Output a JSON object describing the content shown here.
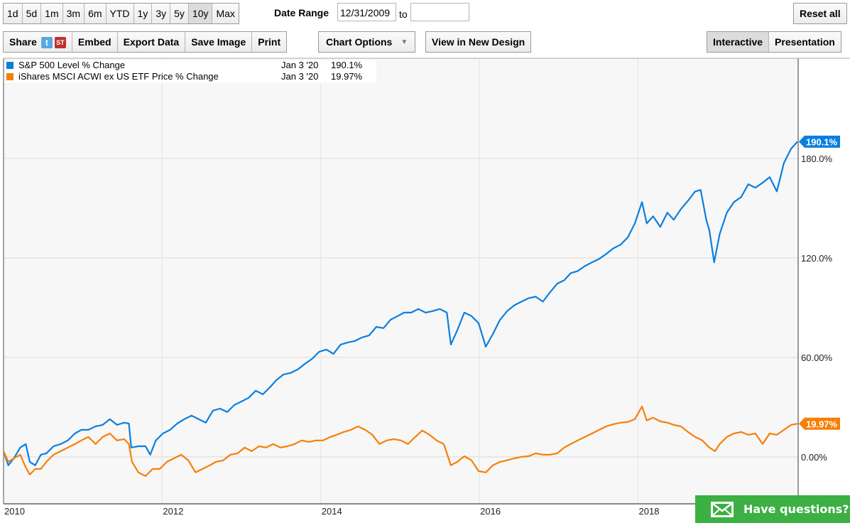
{
  "toolbar": {
    "ranges": [
      "1d",
      "5d",
      "1m",
      "3m",
      "6m",
      "YTD",
      "1y",
      "3y",
      "5y",
      "10y",
      "Max"
    ],
    "active_range": "10y",
    "date_range_label": "Date Range",
    "date_from": "12/31/2009",
    "to_label": "to",
    "date_to": "",
    "reset_label": "Reset all",
    "share_label": "Share",
    "twitter_glyph": "t",
    "stocktwits_glyph": "ST",
    "embed_label": "Embed",
    "export_label": "Export Data",
    "save_image_label": "Save Image",
    "print_label": "Print",
    "chart_options_label": "Chart Options",
    "view_new_design_label": "View in New Design",
    "interactive_label": "Interactive",
    "presentation_label": "Presentation"
  },
  "legend": [
    {
      "name": "S&P 500 Level % Change",
      "date": "Jan 3 '20",
      "value": "190.1%",
      "color": "#0a7fe0"
    },
    {
      "name": "iShares MSCI ACWI ex US ETF Price % Change",
      "date": "Jan 3 '20",
      "value": "19.97%",
      "color": "#f77f06"
    }
  ],
  "help_widget": {
    "label": "Have questions?",
    "icon": "envelope-icon"
  },
  "chart_data": {
    "type": "line",
    "title": "",
    "xlabel": "",
    "ylabel": "",
    "xlim": [
      2010.0,
      2020.01
    ],
    "ylim": [
      -27.9,
      240.4
    ],
    "x_ticks": [
      2010,
      2012,
      2014,
      2016,
      2018
    ],
    "x_tick_labels": [
      "2010",
      "2012",
      "2014",
      "2016",
      "2018"
    ],
    "y_ticks": [
      0,
      60,
      120,
      180
    ],
    "y_tick_labels": [
      "0.00%",
      "60.00%",
      "120.0%",
      "180.0%"
    ],
    "grid": true,
    "legend_position": "top-left",
    "end_labels": [
      "190.1%",
      "19.97%"
    ],
    "series": [
      {
        "name": "S&P 500 Level % Change",
        "color": "#0a7fe0",
        "points": [
          [
            2010.0,
            3.4
          ],
          [
            2010.06,
            -5.1
          ],
          [
            2010.13,
            -0.9
          ],
          [
            2010.21,
            5.6
          ],
          [
            2010.28,
            7.7
          ],
          [
            2010.33,
            -3.0
          ],
          [
            2010.4,
            -5.1
          ],
          [
            2010.47,
            1.3
          ],
          [
            2010.54,
            2.1
          ],
          [
            2010.63,
            6.4
          ],
          [
            2010.72,
            7.7
          ],
          [
            2010.81,
            9.9
          ],
          [
            2010.9,
            14.1
          ],
          [
            2010.98,
            16.3
          ],
          [
            2011.07,
            16.3
          ],
          [
            2011.16,
            18.4
          ],
          [
            2011.25,
            19.3
          ],
          [
            2011.34,
            22.7
          ],
          [
            2011.43,
            19.3
          ],
          [
            2011.52,
            20.6
          ],
          [
            2011.58,
            20.1
          ],
          [
            2011.61,
            5.6
          ],
          [
            2011.7,
            6.4
          ],
          [
            2011.79,
            6.4
          ],
          [
            2011.85,
            1.3
          ],
          [
            2011.92,
            9.9
          ],
          [
            2012.01,
            14.1
          ],
          [
            2012.1,
            16.3
          ],
          [
            2012.19,
            20.1
          ],
          [
            2012.28,
            22.7
          ],
          [
            2012.37,
            24.9
          ],
          [
            2012.46,
            22.7
          ],
          [
            2012.55,
            20.6
          ],
          [
            2012.64,
            27.9
          ],
          [
            2012.73,
            29.1
          ],
          [
            2012.82,
            27.0
          ],
          [
            2012.91,
            31.3
          ],
          [
            2013.0,
            33.4
          ],
          [
            2013.09,
            35.6
          ],
          [
            2013.18,
            39.9
          ],
          [
            2013.27,
            37.7
          ],
          [
            2013.36,
            42.0
          ],
          [
            2013.44,
            46.3
          ],
          [
            2013.53,
            49.7
          ],
          [
            2013.62,
            50.6
          ],
          [
            2013.71,
            52.7
          ],
          [
            2013.8,
            56.1
          ],
          [
            2013.89,
            59.1
          ],
          [
            2013.98,
            63.4
          ],
          [
            2014.07,
            64.7
          ],
          [
            2014.16,
            62.1
          ],
          [
            2014.25,
            67.7
          ],
          [
            2014.34,
            69.0
          ],
          [
            2014.43,
            69.9
          ],
          [
            2014.52,
            72.0
          ],
          [
            2014.61,
            73.3
          ],
          [
            2014.7,
            78.4
          ],
          [
            2014.79,
            77.6
          ],
          [
            2014.88,
            82.7
          ],
          [
            2014.97,
            84.9
          ],
          [
            2015.05,
            87.0
          ],
          [
            2015.14,
            87.0
          ],
          [
            2015.23,
            89.2
          ],
          [
            2015.32,
            87.0
          ],
          [
            2015.41,
            87.9
          ],
          [
            2015.5,
            89.2
          ],
          [
            2015.59,
            87.0
          ],
          [
            2015.64,
            67.7
          ],
          [
            2015.72,
            76.3
          ],
          [
            2015.81,
            87.0
          ],
          [
            2015.9,
            84.9
          ],
          [
            2015.99,
            80.6
          ],
          [
            2016.08,
            66.4
          ],
          [
            2016.17,
            74.1
          ],
          [
            2016.26,
            82.7
          ],
          [
            2016.35,
            87.9
          ],
          [
            2016.44,
            91.4
          ],
          [
            2016.53,
            93.6
          ],
          [
            2016.62,
            95.7
          ],
          [
            2016.71,
            96.6
          ],
          [
            2016.8,
            93.6
          ],
          [
            2016.89,
            99.2
          ],
          [
            2016.98,
            104.4
          ],
          [
            2017.07,
            106.5
          ],
          [
            2017.15,
            110.8
          ],
          [
            2017.24,
            112.1
          ],
          [
            2017.33,
            115.1
          ],
          [
            2017.42,
            117.3
          ],
          [
            2017.51,
            119.4
          ],
          [
            2017.6,
            122.4
          ],
          [
            2017.69,
            125.8
          ],
          [
            2017.78,
            128.0
          ],
          [
            2017.87,
            132.3
          ],
          [
            2017.96,
            140.8
          ],
          [
            2018.05,
            153.7
          ],
          [
            2018.11,
            140.8
          ],
          [
            2018.19,
            145.1
          ],
          [
            2018.28,
            138.7
          ],
          [
            2018.37,
            147.3
          ],
          [
            2018.45,
            143.0
          ],
          [
            2018.54,
            149.4
          ],
          [
            2018.63,
            154.5
          ],
          [
            2018.72,
            160.1
          ],
          [
            2018.79,
            161.0
          ],
          [
            2018.86,
            143.0
          ],
          [
            2018.9,
            136.5
          ],
          [
            2018.96,
            117.3
          ],
          [
            2019.03,
            134.4
          ],
          [
            2019.12,
            147.3
          ],
          [
            2019.21,
            153.7
          ],
          [
            2019.3,
            156.7
          ],
          [
            2019.39,
            164.4
          ],
          [
            2019.48,
            162.3
          ],
          [
            2019.57,
            165.3
          ],
          [
            2019.66,
            168.7
          ],
          [
            2019.75,
            160.1
          ],
          [
            2019.84,
            177.3
          ],
          [
            2019.93,
            185.9
          ],
          [
            2020.01,
            190.1
          ]
        ]
      },
      {
        "name": "iShares MSCI ACWI ex US ETF Price % Change",
        "color": "#f77f06",
        "points": [
          [
            2010.0,
            3.4
          ],
          [
            2010.06,
            -3.0
          ],
          [
            2010.13,
            -0.9
          ],
          [
            2010.21,
            1.3
          ],
          [
            2010.28,
            -6.4
          ],
          [
            2010.33,
            -10.7
          ],
          [
            2010.4,
            -7.3
          ],
          [
            2010.47,
            -7.3
          ],
          [
            2010.54,
            -3.0
          ],
          [
            2010.63,
            1.3
          ],
          [
            2010.72,
            3.4
          ],
          [
            2010.81,
            5.6
          ],
          [
            2010.9,
            7.7
          ],
          [
            2010.98,
            9.9
          ],
          [
            2011.07,
            12.0
          ],
          [
            2011.16,
            7.7
          ],
          [
            2011.25,
            12.0
          ],
          [
            2011.34,
            14.1
          ],
          [
            2011.43,
            9.9
          ],
          [
            2011.52,
            10.7
          ],
          [
            2011.58,
            7.7
          ],
          [
            2011.62,
            -3.0
          ],
          [
            2011.7,
            -9.4
          ],
          [
            2011.79,
            -11.6
          ],
          [
            2011.88,
            -7.3
          ],
          [
            2011.97,
            -7.3
          ],
          [
            2012.06,
            -3.0
          ],
          [
            2012.15,
            -0.9
          ],
          [
            2012.24,
            1.3
          ],
          [
            2012.33,
            -2.1
          ],
          [
            2012.42,
            -9.4
          ],
          [
            2012.51,
            -7.3
          ],
          [
            2012.6,
            -5.1
          ],
          [
            2012.68,
            -3.0
          ],
          [
            2012.77,
            -2.1
          ],
          [
            2012.86,
            1.3
          ],
          [
            2012.95,
            2.1
          ],
          [
            2013.04,
            5.6
          ],
          [
            2013.13,
            3.4
          ],
          [
            2013.22,
            6.4
          ],
          [
            2013.31,
            5.6
          ],
          [
            2013.4,
            7.7
          ],
          [
            2013.49,
            5.6
          ],
          [
            2013.58,
            6.4
          ],
          [
            2013.67,
            7.7
          ],
          [
            2013.76,
            9.9
          ],
          [
            2013.85,
            9.0
          ],
          [
            2013.94,
            9.9
          ],
          [
            2014.03,
            9.9
          ],
          [
            2014.12,
            12.0
          ],
          [
            2014.2,
            13.3
          ],
          [
            2014.29,
            15.0
          ],
          [
            2014.38,
            16.3
          ],
          [
            2014.47,
            18.4
          ],
          [
            2014.56,
            16.3
          ],
          [
            2014.65,
            13.3
          ],
          [
            2014.74,
            7.7
          ],
          [
            2014.83,
            9.9
          ],
          [
            2014.92,
            10.7
          ],
          [
            2015.01,
            9.9
          ],
          [
            2015.1,
            7.7
          ],
          [
            2015.19,
            12.0
          ],
          [
            2015.28,
            15.9
          ],
          [
            2015.37,
            13.3
          ],
          [
            2015.46,
            9.9
          ],
          [
            2015.55,
            7.7
          ],
          [
            2015.64,
            -5.1
          ],
          [
            2015.72,
            -3.0
          ],
          [
            2015.81,
            0.4
          ],
          [
            2015.9,
            -2.1
          ],
          [
            2015.99,
            -8.6
          ],
          [
            2016.08,
            -9.4
          ],
          [
            2016.17,
            -5.1
          ],
          [
            2016.26,
            -3.0
          ],
          [
            2016.35,
            -2.1
          ],
          [
            2016.44,
            -0.9
          ],
          [
            2016.53,
            0.0
          ],
          [
            2016.62,
            0.4
          ],
          [
            2016.71,
            2.1
          ],
          [
            2016.8,
            1.3
          ],
          [
            2016.89,
            1.3
          ],
          [
            2016.98,
            2.1
          ],
          [
            2017.07,
            5.6
          ],
          [
            2017.15,
            7.7
          ],
          [
            2017.24,
            9.9
          ],
          [
            2017.33,
            12.0
          ],
          [
            2017.42,
            14.1
          ],
          [
            2017.51,
            16.3
          ],
          [
            2017.6,
            18.4
          ],
          [
            2017.69,
            19.7
          ],
          [
            2017.78,
            20.6
          ],
          [
            2017.87,
            21.0
          ],
          [
            2017.96,
            22.7
          ],
          [
            2018.05,
            30.4
          ],
          [
            2018.11,
            21.9
          ],
          [
            2018.19,
            23.6
          ],
          [
            2018.28,
            21.4
          ],
          [
            2018.37,
            20.6
          ],
          [
            2018.45,
            19.3
          ],
          [
            2018.54,
            18.4
          ],
          [
            2018.63,
            15.0
          ],
          [
            2018.72,
            12.0
          ],
          [
            2018.81,
            9.9
          ],
          [
            2018.9,
            5.6
          ],
          [
            2018.97,
            3.4
          ],
          [
            2019.03,
            7.7
          ],
          [
            2019.12,
            12.0
          ],
          [
            2019.21,
            14.1
          ],
          [
            2019.3,
            15.0
          ],
          [
            2019.39,
            13.3
          ],
          [
            2019.48,
            14.1
          ],
          [
            2019.57,
            7.7
          ],
          [
            2019.66,
            14.1
          ],
          [
            2019.75,
            13.3
          ],
          [
            2019.84,
            16.3
          ],
          [
            2019.93,
            19.3
          ],
          [
            2020.01,
            19.97
          ]
        ]
      }
    ]
  }
}
